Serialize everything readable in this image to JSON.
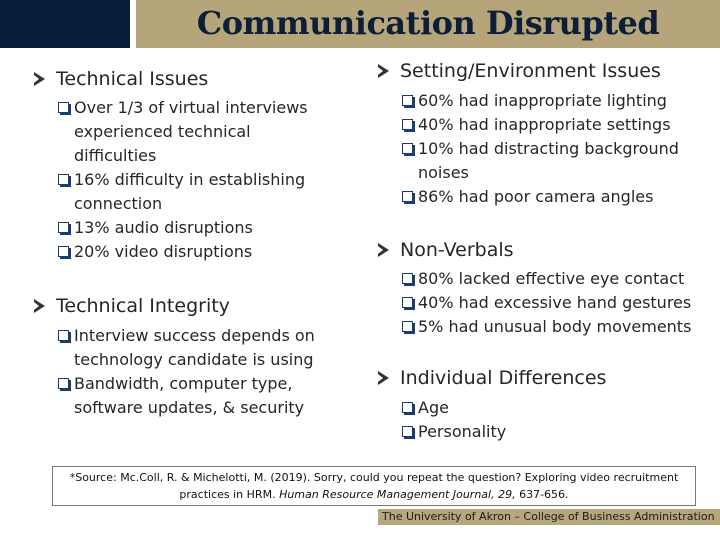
{
  "title": "Communication Disrupted",
  "left": {
    "sections": [
      {
        "heading": "Technical Issues",
        "items": [
          "Over 1/3 of virtual interviews experienced technical difficulties",
          "16% difficulty in establishing connection",
          "13% audio disruptions",
          "20% video disruptions"
        ]
      },
      {
        "heading": "Technical Integrity",
        "items": [
          "Interview success depends on technology candidate is using",
          "Bandwidth, computer type, software updates, & security"
        ]
      }
    ]
  },
  "right": {
    "sections": [
      {
        "heading": "Setting/Environment Issues",
        "items": [
          "60% had inappropriate lighting",
          "40% had inappropriate settings",
          "10% had distracting background noises",
          "86% had poor camera angles"
        ]
      },
      {
        "heading": "Non-Verbals",
        "items": [
          "80% lacked effective eye contact",
          "40% had excessive hand gestures",
          "5% had unusual body movements"
        ]
      },
      {
        "heading": "Individual Differences",
        "items": [
          "Age",
          "Personality"
        ]
      }
    ]
  },
  "source": {
    "part1": "*Source: Mc.Coll, R. & Michelotti, M. (2019). Sorry, could you repeat the question? Exploring video recruitment practices in HRM.",
    "journal": "Human Resource Management Journal, 29,",
    "part2": "637-656."
  },
  "footer": "The University of Akron – College of Business Administration"
}
